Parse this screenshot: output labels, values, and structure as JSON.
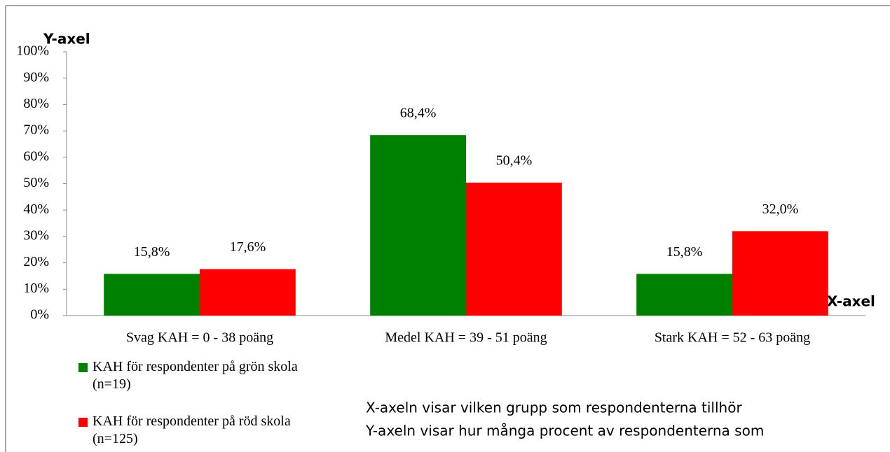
{
  "chart_data": {
    "type": "bar",
    "y_label": "Y-axel",
    "x_label": "X-axel",
    "categories": [
      "Svag KAH = 0 - 38 poäng",
      "Medel KAH = 39 - 51 poäng",
      "Stark KAH = 52 - 63 poäng"
    ],
    "series": [
      {
        "name": "KAH för respondenter på grön skola (n=19)",
        "color": "#008000",
        "values": [
          15.8,
          68.4,
          15.8
        ],
        "value_labels": [
          "15,8%",
          "68,4%",
          "15,8%"
        ]
      },
      {
        "name": "KAH för respondenter på röd skola (n=125)",
        "color": "#ff0000",
        "values": [
          17.6,
          50.4,
          32.0
        ],
        "value_labels": [
          "17,6%",
          "50,4%",
          "32,0%"
        ]
      }
    ],
    "ylim": [
      0,
      100
    ],
    "yticks": [
      {
        "value": 0,
        "label": "0%"
      },
      {
        "value": 10,
        "label": "10%"
      },
      {
        "value": 20,
        "label": "20%"
      },
      {
        "value": 30,
        "label": "30%"
      },
      {
        "value": 40,
        "label": "40%"
      },
      {
        "value": 50,
        "label": "50%"
      },
      {
        "value": 60,
        "label": "60%"
      },
      {
        "value": 70,
        "label": "70%"
      },
      {
        "value": 80,
        "label": "80%"
      },
      {
        "value": 90,
        "label": "90%"
      },
      {
        "value": 100,
        "label": "100%"
      }
    ],
    "grid": false,
    "annotations": [
      "X-axeln visar vilken grupp som respondenterna tillhör",
      "Y-axeln visar hur många procent av respondenterna som"
    ]
  }
}
